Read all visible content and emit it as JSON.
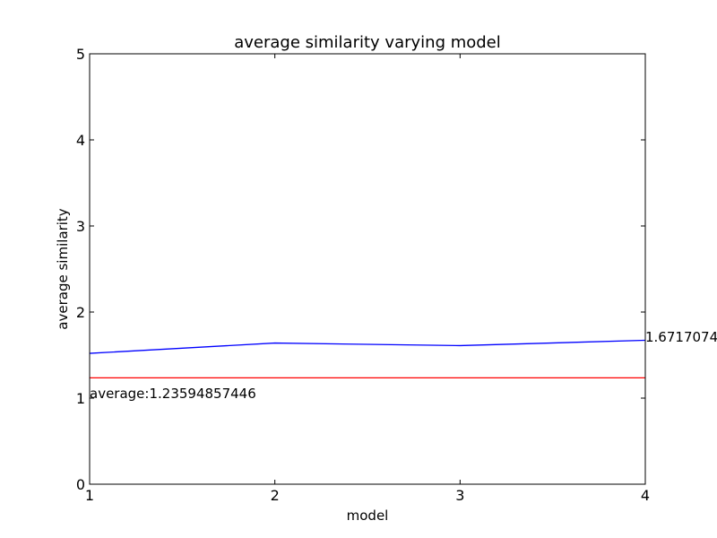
{
  "chart_data": {
    "type": "line",
    "title": "average similarity varying model",
    "xlabel": "model",
    "ylabel": "average similarity",
    "xlim": [
      1,
      4
    ],
    "ylim": [
      0,
      5
    ],
    "x_ticks": [
      "1",
      "2",
      "3",
      "4"
    ],
    "y_ticks": [
      "0",
      "1",
      "2",
      "3",
      "4",
      "5"
    ],
    "grid": false,
    "series": [
      {
        "x": [
          1,
          2,
          3,
          4
        ],
        "values": [
          1.52,
          1.64,
          1.61,
          1.6717074
        ],
        "color": "#0000ff"
      }
    ],
    "reference_line": {
      "y": 1.23594857446,
      "color": "#ff0000"
    },
    "annotations": {
      "average_text": "average:1.23594857446",
      "last_value_text": "1.6717074"
    }
  }
}
